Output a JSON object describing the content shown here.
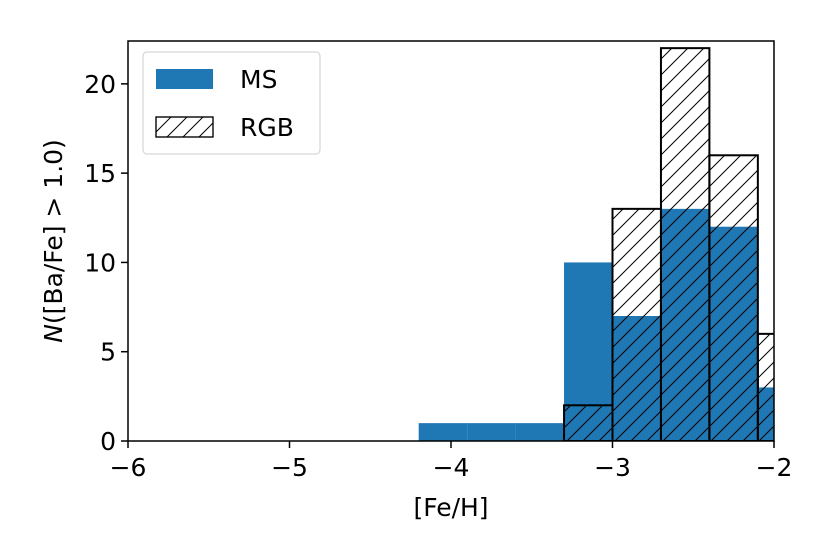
{
  "chart_data": {
    "type": "bar",
    "xlabel": "[Fe/H]",
    "ylabel_italic": "N",
    "ylabel_rest": "([Ba/Fe] > 1.0)",
    "xlim": [
      -6,
      -2
    ],
    "ylim": [
      0,
      22.4
    ],
    "xticks": [
      {
        "value": -6,
        "label": "−6"
      },
      {
        "value": -5,
        "label": "−5"
      },
      {
        "value": -4,
        "label": "−4"
      },
      {
        "value": -3,
        "label": "−3"
      },
      {
        "value": -2,
        "label": "−2"
      }
    ],
    "yticks": [
      {
        "value": 0,
        "label": "0"
      },
      {
        "value": 5,
        "label": "5"
      },
      {
        "value": 10,
        "label": "10"
      },
      {
        "value": 15,
        "label": "15"
      },
      {
        "value": 20,
        "label": "20"
      }
    ],
    "legend_position": "upper-left",
    "series": [
      {
        "name": "MS",
        "style": "filled",
        "color": "#1f77b4",
        "bins": [
          {
            "x0": -4.2,
            "x1": -3.9,
            "value": 1
          },
          {
            "x0": -3.9,
            "x1": -3.6,
            "value": 1
          },
          {
            "x0": -3.6,
            "x1": -3.3,
            "value": 1
          },
          {
            "x0": -3.3,
            "x1": -3.0,
            "value": 10
          },
          {
            "x0": -3.0,
            "x1": -2.7,
            "value": 7
          },
          {
            "x0": -2.7,
            "x1": -2.4,
            "value": 13
          },
          {
            "x0": -2.4,
            "x1": -2.1,
            "value": 12
          },
          {
            "x0": -2.1,
            "x1": -1.8,
            "value": 3
          }
        ]
      },
      {
        "name": "RGB",
        "style": "hatched-outline",
        "color": "#000000",
        "bins": [
          {
            "x0": -3.3,
            "x1": -3.0,
            "value": 2
          },
          {
            "x0": -3.0,
            "x1": -2.7,
            "value": 13
          },
          {
            "x0": -2.7,
            "x1": -2.4,
            "value": 22
          },
          {
            "x0": -2.4,
            "x1": -2.1,
            "value": 16
          },
          {
            "x0": -2.1,
            "x1": -1.8,
            "value": 6
          }
        ]
      }
    ]
  }
}
